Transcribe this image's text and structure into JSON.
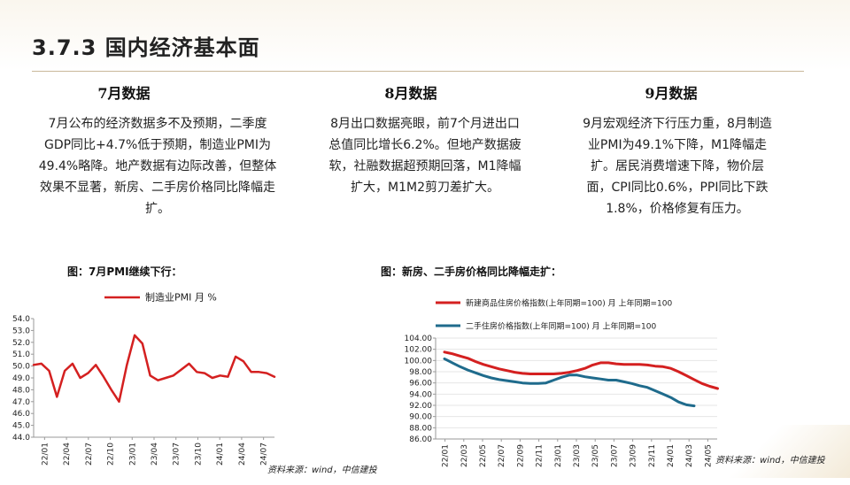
{
  "header": {
    "title": "3.7.3 国内经济基本面"
  },
  "columns": [
    {
      "heading": "7月数据",
      "text": "7月公布的经济数据多不及预期，二季度GDP同比+4.7%低于预期，制造业PMI为49.4%略降。地产数据有边际改善，但整体效果不显著，新房、二手房价格同比降幅走扩。"
    },
    {
      "heading": "8月数据",
      "text": "8月出口数据亮眼，前7个月进出口总值同比增长6.2%。但地产数据疲软，社融数据超预期回落，M1降幅扩大，M1M2剪刀差扩大。"
    },
    {
      "heading": "9月数据",
      "text": "9月宏观经济下行压力重，8月制造业PMI为49.1%下降，M1降幅走扩。居民消费增速下降，物价层面，CPI同比0.6%，PPI同比下跌1.8%，价格修复有压力。"
    }
  ],
  "captions": {
    "pmi": "图：7月PMI继续下行：",
    "house": "图：新房、二手房价格同比降幅走扩："
  },
  "sources": {
    "pmi": "资料来源：wind，中信建投",
    "house": "资料来源：wind，中信建投"
  },
  "colors": {
    "series1": "#d42020",
    "series2": "#1f6b8c",
    "rule": "#c9b89a"
  },
  "chart_data": [
    {
      "type": "line",
      "title": "",
      "series": [
        {
          "name": "制造业PMI 月 %",
          "color": "#d42020",
          "values": [
            50.1,
            50.2,
            49.6,
            47.4,
            49.6,
            50.2,
            49.0,
            49.4,
            50.1,
            49.1,
            48.0,
            47.0,
            50.1,
            52.6,
            51.9,
            49.2,
            48.8,
            49.0,
            49.2,
            49.7,
            50.2,
            49.5,
            49.4,
            49.0,
            49.2,
            49.1,
            50.8,
            50.4,
            49.5,
            49.5,
            49.4,
            49.1
          ]
        }
      ],
      "x_ticks": [
        "22/01",
        "22/04",
        "22/07",
        "22/10",
        "23/01",
        "23/04",
        "23/07",
        "23/10",
        "24/01",
        "24/04",
        "24/07"
      ],
      "ylim": [
        44.0,
        54.0
      ],
      "y_ticks": [
        "54.0",
        "53.0",
        "52.0",
        "51.0",
        "50.0",
        "49.0",
        "48.0",
        "47.0",
        "46.0",
        "45.0",
        "44.0"
      ],
      "legend": "top"
    },
    {
      "type": "line",
      "title": "",
      "series": [
        {
          "name": "新建商品住房价格指数(上年同期=100) 月 上年同期=100",
          "color": "#d42020",
          "values": [
            101.5,
            101.2,
            100.8,
            100.4,
            99.8,
            99.3,
            98.9,
            98.5,
            98.2,
            97.9,
            97.7,
            97.6,
            97.6,
            97.6,
            97.6,
            97.7,
            97.9,
            98.2,
            98.6,
            99.2,
            99.6,
            99.6,
            99.4,
            99.3,
            99.3,
            99.3,
            99.2,
            99.0,
            98.9,
            98.6,
            98.0,
            97.3,
            96.6,
            95.9,
            95.4,
            95.0
          ]
        },
        {
          "name": "二手住房价格指数(上年同期=100) 月 上年同期=100",
          "color": "#1f6b8c",
          "values": [
            100.3,
            99.6,
            98.9,
            98.3,
            97.8,
            97.3,
            96.9,
            96.6,
            96.4,
            96.2,
            96.0,
            95.9,
            95.9,
            96.0,
            96.5,
            97.0,
            97.4,
            97.4,
            97.1,
            96.9,
            96.7,
            96.5,
            96.5,
            96.2,
            95.9,
            95.5,
            95.2,
            94.6,
            94.0,
            93.4,
            92.6,
            92.1,
            91.9
          ]
        }
      ],
      "x_ticks": [
        "22/01",
        "22/03",
        "22/05",
        "22/07",
        "22/09",
        "22/11",
        "23/01",
        "23/03",
        "23/05",
        "23/07",
        "23/09",
        "23/11",
        "24/01",
        "24/03",
        "24/05"
      ],
      "ylim": [
        86.0,
        104.0
      ],
      "y_ticks": [
        "104.00",
        "102.00",
        "100.00",
        "98.00",
        "96.00",
        "94.00",
        "92.00",
        "90.00",
        "88.00",
        "86.00"
      ],
      "legend": "top-left"
    }
  ]
}
